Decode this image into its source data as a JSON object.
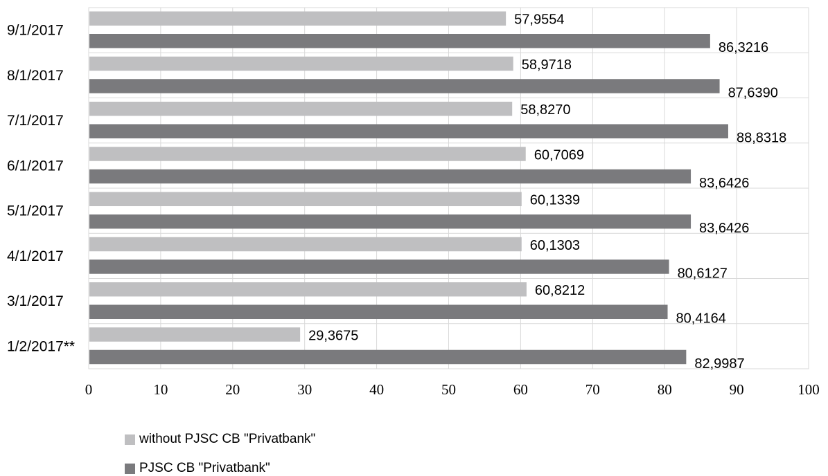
{
  "chart_data": {
    "type": "bar",
    "orientation": "horizontal",
    "categories": [
      "9/1/2017",
      "8/1/2017",
      "7/1/2017",
      "6/1/2017",
      "5/1/2017",
      "4/1/2017",
      "3/1/2017",
      "1/2/2017**"
    ],
    "series": [
      {
        "name": "without PJSC CB \"Privatbank\"",
        "color": "#bfbfc1",
        "values": [
          57.9554,
          58.9718,
          58.827,
          60.7069,
          60.1339,
          60.1303,
          60.8212,
          29.3675
        ],
        "labels": [
          "57,9554",
          "58,9718",
          "58,8270",
          "60,7069",
          "60,1339",
          "60,1303",
          "60,8212",
          "29,3675"
        ]
      },
      {
        "name": "PJSC CB \"Privatbank\"",
        "color": "#7a7a7d",
        "values": [
          86.3216,
          87.639,
          88.8318,
          83.6426,
          83.6426,
          80.6127,
          80.4164,
          82.9987
        ],
        "labels": [
          "86,3216",
          "87,6390",
          "88,8318",
          "83,6426",
          "83,6426",
          "80,6127",
          "80,4164",
          "82,9987"
        ]
      }
    ],
    "x_ticks": [
      "0",
      "10",
      "20",
      "30",
      "40",
      "50",
      "60",
      "70",
      "80",
      "90",
      "100"
    ],
    "xlim": [
      0,
      100
    ],
    "grid": true,
    "legend_position": "bottom-left",
    "title": "",
    "xlabel": "",
    "ylabel": ""
  }
}
